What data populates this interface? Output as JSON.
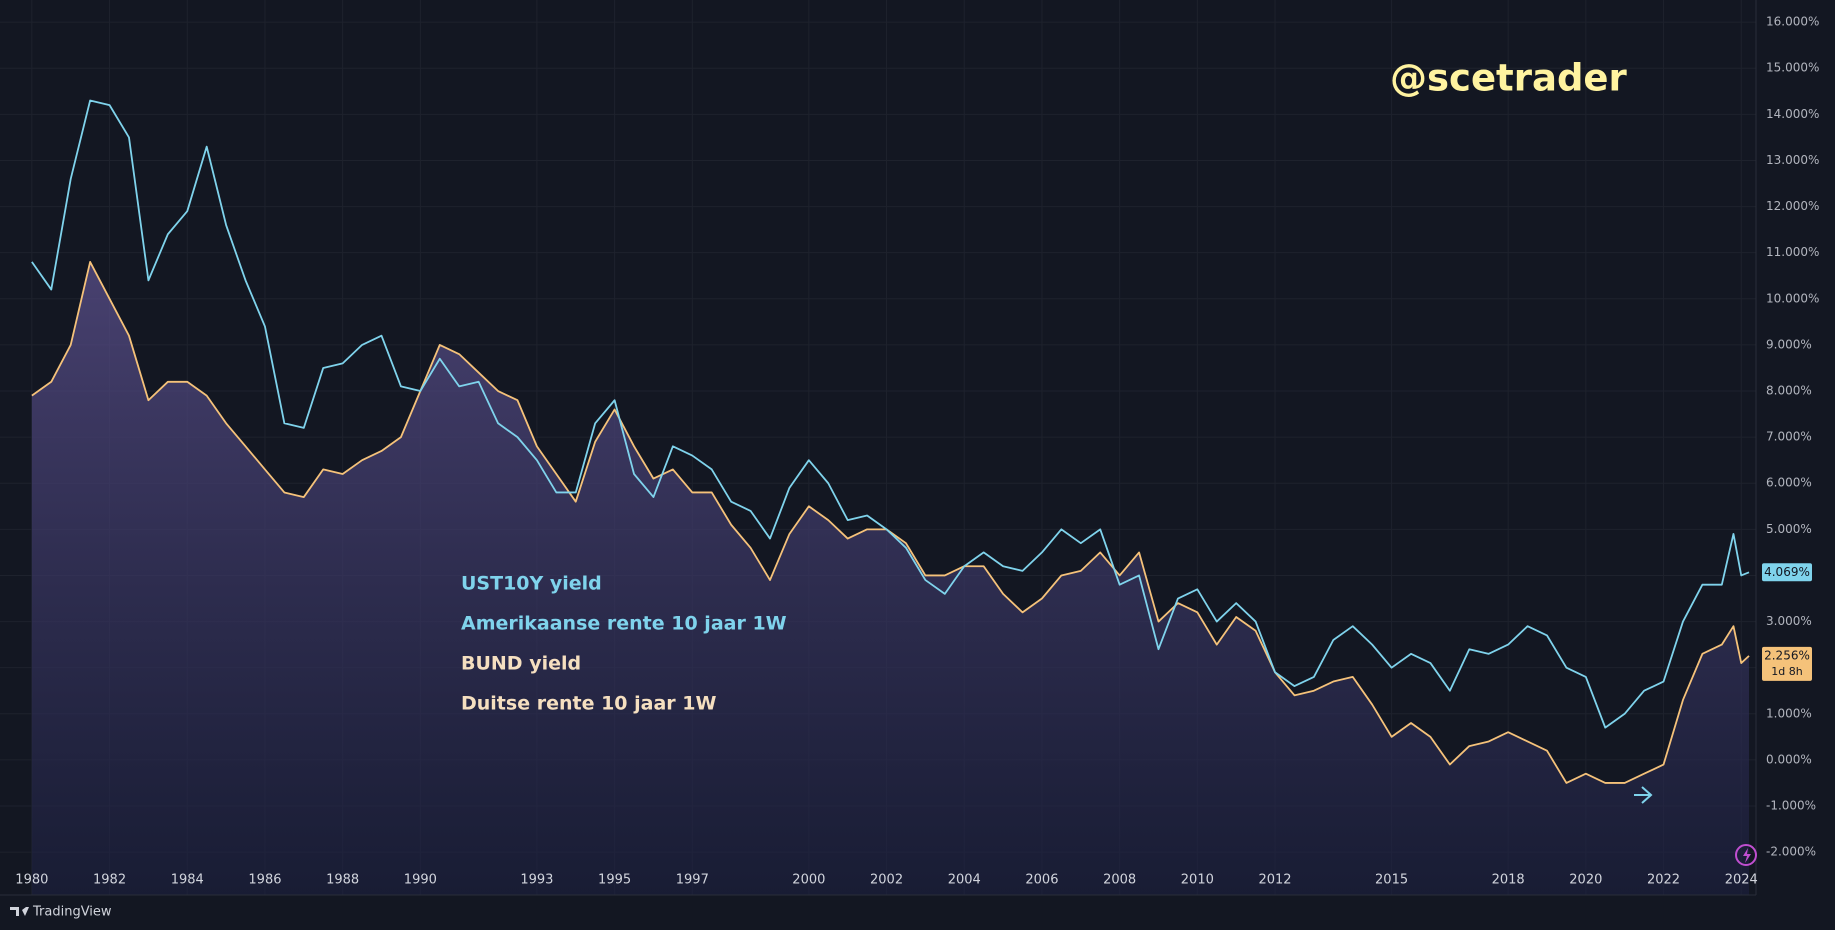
{
  "chart_data": {
    "type": "line",
    "watermark": "@scetrader",
    "brand": "TradingView",
    "legend_lines": [
      "UST10Y yield",
      "Amerikaanse rente 10 jaar 1W",
      "BUND yield",
      "Duitse rente 10 jaar 1W"
    ],
    "x": [
      1980,
      1980.5,
      1981,
      1981.5,
      1982,
      1982.5,
      1983,
      1983.5,
      1984,
      1984.5,
      1985,
      1985.5,
      1986,
      1986.5,
      1987,
      1987.5,
      1988,
      1988.5,
      1989,
      1989.5,
      1990,
      1990.5,
      1991,
      1991.5,
      1992,
      1992.5,
      1993,
      1993.5,
      1994,
      1994.5,
      1995,
      1995.5,
      1996,
      1996.5,
      1997,
      1997.5,
      1998,
      1998.5,
      1999,
      1999.5,
      2000,
      2000.5,
      2001,
      2001.5,
      2002,
      2002.5,
      2003,
      2003.5,
      2004,
      2004.5,
      2005,
      2005.5,
      2006,
      2006.5,
      2007,
      2007.5,
      2008,
      2008.5,
      2009,
      2009.5,
      2010,
      2010.5,
      2011,
      2011.5,
      2012,
      2012.5,
      2013,
      2013.5,
      2014,
      2014.5,
      2015,
      2015.5,
      2016,
      2016.5,
      2017,
      2017.5,
      2018,
      2018.5,
      2019,
      2019.5,
      2020,
      2020.5,
      2021,
      2021.5,
      2022,
      2022.5,
      2023,
      2023.5,
      2023.8,
      2024,
      2024.2
    ],
    "series": [
      {
        "name": "UST10Y",
        "color": "#7fd3ec",
        "area": false,
        "values": [
          10.8,
          10.2,
          12.6,
          14.3,
          14.2,
          13.5,
          10.4,
          11.4,
          11.9,
          13.3,
          11.6,
          10.4,
          9.4,
          7.3,
          7.2,
          8.5,
          8.6,
          9.0,
          9.2,
          8.1,
          8.0,
          8.7,
          8.1,
          8.2,
          7.3,
          7.0,
          6.5,
          5.8,
          5.8,
          7.3,
          7.8,
          6.2,
          5.7,
          6.8,
          6.6,
          6.3,
          5.6,
          5.4,
          4.8,
          5.9,
          6.5,
          6.0,
          5.2,
          5.3,
          5.0,
          4.6,
          3.9,
          3.6,
          4.2,
          4.5,
          4.2,
          4.1,
          4.5,
          5.0,
          4.7,
          5.0,
          3.8,
          4.0,
          2.4,
          3.5,
          3.7,
          3.0,
          3.4,
          3.0,
          1.9,
          1.6,
          1.8,
          2.6,
          2.9,
          2.5,
          2.0,
          2.3,
          2.1,
          1.5,
          2.4,
          2.3,
          2.5,
          2.9,
          2.7,
          2.0,
          1.8,
          0.7,
          1.0,
          1.5,
          1.7,
          3.0,
          3.8,
          3.8,
          4.9,
          4.0,
          4.069
        ],
        "value_labels": [
          null,
          null,
          null,
          null,
          null,
          null,
          null,
          null,
          null,
          null,
          null,
          null,
          null,
          null,
          null,
          null,
          null,
          null,
          null,
          null,
          null,
          null,
          null,
          null,
          null,
          null,
          null,
          null,
          null,
          null,
          null,
          null,
          null,
          null,
          null,
          null,
          null,
          null,
          null,
          null,
          null,
          null,
          null,
          null,
          null,
          null,
          null,
          null,
          null,
          null,
          null,
          null,
          null,
          null,
          null,
          null,
          null,
          null,
          null,
          null,
          null,
          null,
          null,
          null,
          null,
          null,
          null,
          null,
          null,
          null,
          null,
          null,
          null,
          null,
          null,
          null,
          null,
          null,
          null,
          null,
          null,
          null,
          null,
          null,
          null,
          null,
          null,
          null,
          null,
          null,
          "4.069%"
        ],
        "tag_color": "#7fd3ec"
      },
      {
        "name": "BUND",
        "color": "#f5c27a",
        "area": true,
        "values": [
          7.9,
          8.2,
          9.0,
          10.8,
          10.0,
          9.2,
          7.8,
          8.2,
          8.2,
          7.9,
          7.3,
          6.8,
          6.3,
          5.8,
          5.7,
          6.3,
          6.2,
          6.5,
          6.7,
          7.0,
          8.0,
          9.0,
          8.8,
          8.4,
          8.0,
          7.8,
          6.8,
          6.2,
          5.6,
          6.9,
          7.6,
          6.8,
          6.1,
          6.3,
          5.8,
          5.8,
          5.1,
          4.6,
          3.9,
          4.9,
          5.5,
          5.2,
          4.8,
          5.0,
          5.0,
          4.7,
          4.0,
          4.0,
          4.2,
          4.2,
          3.6,
          3.2,
          3.5,
          4.0,
          4.1,
          4.5,
          4.0,
          4.5,
          3.0,
          3.4,
          3.2,
          2.5,
          3.1,
          2.8,
          1.9,
          1.4,
          1.5,
          1.7,
          1.8,
          1.2,
          0.5,
          0.8,
          0.5,
          -0.1,
          0.3,
          0.4,
          0.6,
          0.4,
          0.2,
          -0.5,
          -0.3,
          -0.5,
          -0.5,
          -0.3,
          -0.1,
          1.3,
          2.3,
          2.5,
          2.9,
          2.1,
          2.256
        ],
        "value_labels": [
          null,
          null,
          null,
          null,
          null,
          null,
          null,
          null,
          null,
          null,
          null,
          null,
          null,
          null,
          null,
          null,
          null,
          null,
          null,
          null,
          null,
          null,
          null,
          null,
          null,
          null,
          null,
          null,
          null,
          null,
          null,
          null,
          null,
          null,
          null,
          null,
          null,
          null,
          null,
          null,
          null,
          null,
          null,
          null,
          null,
          null,
          null,
          null,
          null,
          null,
          null,
          null,
          null,
          null,
          null,
          null,
          null,
          null,
          null,
          null,
          null,
          null,
          null,
          null,
          null,
          null,
          null,
          null,
          null,
          null,
          null,
          null,
          null,
          null,
          null,
          null,
          null,
          null,
          null,
          null,
          null,
          null,
          null,
          null,
          null,
          null,
          null,
          null,
          null,
          null,
          "2.256%"
        ],
        "tag_color": "#f5c27a",
        "countdown": "1d 8h"
      }
    ],
    "xlim": [
      1979.18,
      2024.38
    ],
    "xticks": [
      1980,
      1982,
      1984,
      1986,
      1988,
      1990,
      1993,
      1995,
      1997,
      2000,
      2002,
      2004,
      2006,
      2008,
      2010,
      2012,
      2015,
      2018,
      2020,
      2022,
      2024
    ],
    "ylim": [
      -2.93,
      16.48
    ],
    "yticks": [
      {
        "value": 16,
        "label": "16.000%"
      },
      {
        "value": 15,
        "label": "15.000%"
      },
      {
        "value": 14,
        "label": "14.000%"
      },
      {
        "value": 13,
        "label": "13.000%"
      },
      {
        "value": 12,
        "label": "12.000%"
      },
      {
        "value": 11,
        "label": "11.000%"
      },
      {
        "value": 10,
        "label": "10.000%"
      },
      {
        "value": 9,
        "label": "9.000%"
      },
      {
        "value": 8,
        "label": "8.000%"
      },
      {
        "value": 7,
        "label": "7.000%"
      },
      {
        "value": 6,
        "label": "6.000%"
      },
      {
        "value": 5,
        "label": "5.000%"
      },
      {
        "value": 4,
        "label": "4.000%"
      },
      {
        "value": 3,
        "label": "3.000%"
      },
      {
        "value": 2,
        "label": "2.000%"
      },
      {
        "value": 1,
        "label": "1.000%"
      },
      {
        "value": 0,
        "label": "0.000%"
      },
      {
        "value": -1,
        "label": "-1.000%"
      },
      {
        "value": -2,
        "label": "-2.000%"
      }
    ],
    "grid": true,
    "legend_colors": [
      "#7fd3ec",
      "#7fd3ec",
      "#f5dfc0",
      "#f5dfc0"
    ]
  }
}
